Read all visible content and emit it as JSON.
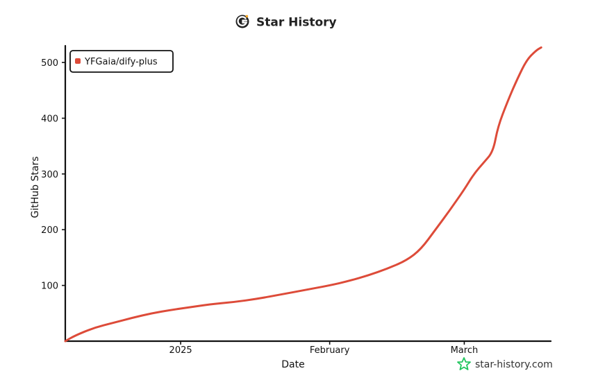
{
  "chart_data": {
    "type": "line",
    "title": "Star History",
    "xlabel": "Date",
    "ylabel": "GitHub Stars",
    "x_ticks": [
      {
        "label": "2025",
        "date": "2025-01-01"
      },
      {
        "label": "February",
        "date": "2025-02-01"
      },
      {
        "label": "March",
        "date": "2025-03-01"
      }
    ],
    "y_ticks": [
      100,
      200,
      300,
      400,
      500
    ],
    "xlim": [
      "2024-12-08",
      "2025-03-19"
    ],
    "ylim": [
      0,
      530
    ],
    "legend_position": "top-left",
    "grid": false,
    "series": [
      {
        "name": "YFGaia/dify-plus",
        "color": "#dd4b39",
        "points": [
          {
            "x": "2024-12-08",
            "y": 0
          },
          {
            "x": "2024-12-10",
            "y": 10
          },
          {
            "x": "2024-12-14",
            "y": 24
          },
          {
            "x": "2024-12-18",
            "y": 33
          },
          {
            "x": "2024-12-22",
            "y": 42
          },
          {
            "x": "2024-12-26",
            "y": 50
          },
          {
            "x": "2024-12-30",
            "y": 56
          },
          {
            "x": "2025-01-03",
            "y": 61
          },
          {
            "x": "2025-01-07",
            "y": 66
          },
          {
            "x": "2025-01-12",
            "y": 70
          },
          {
            "x": "2025-01-17",
            "y": 76
          },
          {
            "x": "2025-01-22",
            "y": 84
          },
          {
            "x": "2025-01-27",
            "y": 92
          },
          {
            "x": "2025-02-01",
            "y": 100
          },
          {
            "x": "2025-02-05",
            "y": 108
          },
          {
            "x": "2025-02-09",
            "y": 118
          },
          {
            "x": "2025-02-13",
            "y": 130
          },
          {
            "x": "2025-02-17",
            "y": 145
          },
          {
            "x": "2025-02-20",
            "y": 165
          },
          {
            "x": "2025-02-23",
            "y": 200
          },
          {
            "x": "2025-02-26",
            "y": 235
          },
          {
            "x": "2025-03-01",
            "y": 272
          },
          {
            "x": "2025-03-03",
            "y": 300
          },
          {
            "x": "2025-03-05",
            "y": 320
          },
          {
            "x": "2025-03-07",
            "y": 340
          },
          {
            "x": "2025-03-08",
            "y": 385
          },
          {
            "x": "2025-03-10",
            "y": 430
          },
          {
            "x": "2025-03-12",
            "y": 470
          },
          {
            "x": "2025-03-14",
            "y": 505
          },
          {
            "x": "2025-03-16",
            "y": 522
          },
          {
            "x": "2025-03-17",
            "y": 527
          }
        ]
      }
    ]
  },
  "logo": {
    "icon": "star-history-logo-icon"
  },
  "watermark": {
    "text": "star-history.com",
    "icon": "star-outline-icon",
    "color": "#22c55e"
  }
}
